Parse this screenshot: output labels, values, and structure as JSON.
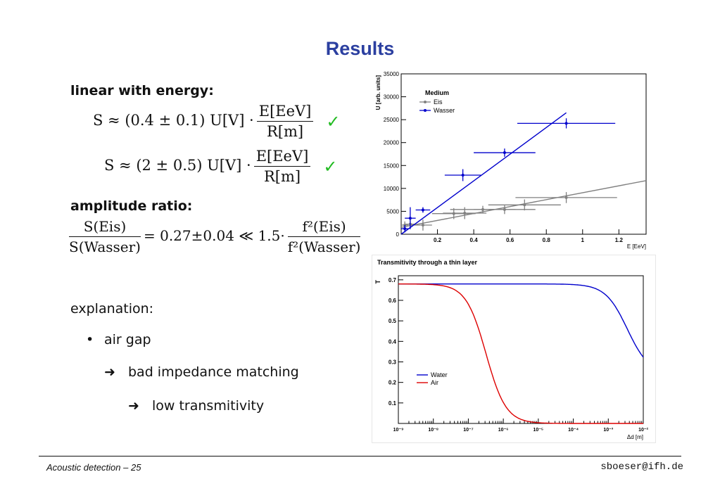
{
  "title": "Results",
  "section1": {
    "heading": "linear with energy:",
    "eq1": {
      "lhs": "S ≈ (0.4 ± 0.1) U[V] ·",
      "num": "E[EeV]",
      "den": "R[m]"
    },
    "eq2": {
      "lhs": "S ≈ (2 ± 0.5) U[V] ·",
      "num": "E[EeV]",
      "den": "R[m]"
    },
    "check": "✓"
  },
  "section2": {
    "heading": "amplitude ratio:",
    "lhs_num": "S(Eis)",
    "lhs_den": "S(Wasser)",
    "middle": "= 0.27±0.04 ≪ 1.5·",
    "rhs_num": "f²(Eis)",
    "rhs_den": "f²(Wasser)"
  },
  "section3": {
    "heading": "explanation:",
    "bullet": "•",
    "item1": "air gap",
    "arrow": "➜",
    "item2": "bad impedance matching",
    "item3": "low transmitivity"
  },
  "footer": {
    "left": "Acoustic detection – 25",
    "right": "sboeser@ifh.de"
  },
  "colors": {
    "title": "#2b3fa0",
    "check": "#22bb22",
    "blue": "#0000cc",
    "gray": "#808080",
    "red": "#dd0000"
  },
  "chart_data": [
    {
      "type": "scatter",
      "title": "",
      "xlabel": "E [EeV]",
      "ylabel": "U [arb. units]",
      "xlim": [
        0,
        1.35
      ],
      "ylim": [
        0,
        35000
      ],
      "x_ticks": [
        0.2,
        0.4,
        0.6,
        0.8,
        1,
        1.2
      ],
      "x_tick_labels": [
        "0.2",
        "0.4",
        "0.6",
        "0.8",
        "1",
        "1.2"
      ],
      "y_ticks": [
        0,
        5000,
        10000,
        15000,
        20000,
        25000,
        30000,
        35000
      ],
      "y_tick_labels": [
        "0",
        "5000",
        "10000",
        "15000",
        "20000",
        "25000",
        "30000",
        "35000"
      ],
      "legend": {
        "title": "Medium",
        "placement": "top-left"
      },
      "series": [
        {
          "name": "Eis",
          "color": "#808080",
          "points": [
            {
              "x": 0.02,
              "y": 2000,
              "xerr": 0.02,
              "yerr": 800
            },
            {
              "x": 0.05,
              "y": 2200,
              "xerr": 0.03,
              "yerr": 900
            },
            {
              "x": 0.12,
              "y": 2000,
              "xerr": 0.05,
              "yerr": 1200
            },
            {
              "x": 0.29,
              "y": 4500,
              "xerr": 0.12,
              "yerr": 1200
            },
            {
              "x": 0.35,
              "y": 4600,
              "xerr": 0.12,
              "yerr": 1300
            },
            {
              "x": 0.45,
              "y": 5400,
              "xerr": 0.18,
              "yerr": 800
            },
            {
              "x": 0.57,
              "y": 5400,
              "xerr": 0.17,
              "yerr": 1000
            },
            {
              "x": 0.68,
              "y": 6400,
              "xerr": 0.2,
              "yerr": 1200
            },
            {
              "x": 0.91,
              "y": 8000,
              "xerr": 0.28,
              "yerr": 1200
            }
          ],
          "fit": {
            "x": [
              0,
              1.35
            ],
            "y": [
              1500,
              11700
            ]
          }
        },
        {
          "name": "Wasser",
          "color": "#0000cc",
          "points": [
            {
              "x": 0.02,
              "y": 1200,
              "xerr": 0.02,
              "yerr": 800
            },
            {
              "x": 0.05,
              "y": 3500,
              "xerr": 0.03,
              "yerr": 2400
            },
            {
              "x": 0.12,
              "y": 5300,
              "xerr": 0.04,
              "yerr": 600
            },
            {
              "x": 0.34,
              "y": 12900,
              "xerr": 0.1,
              "yerr": 1300
            },
            {
              "x": 0.57,
              "y": 17800,
              "xerr": 0.17,
              "yerr": 900
            },
            {
              "x": 0.91,
              "y": 24200,
              "xerr": 0.27,
              "yerr": 1100
            }
          ],
          "fit": {
            "x": [
              0,
              0.91
            ],
            "y": [
              0,
              26500
            ]
          }
        }
      ]
    },
    {
      "type": "line",
      "title": "Transmitivity through a thin layer",
      "xlabel": "Δd [m]",
      "ylabel": "T",
      "x_scale": "log",
      "xlim": [
        1e-09,
        0.01
      ],
      "ylim": [
        0,
        0.72
      ],
      "x_ticks": [
        1e-09,
        1e-08,
        1e-07,
        1e-06,
        1e-05,
        0.0001,
        0.001,
        0.01
      ],
      "x_tick_labels": [
        "10⁻⁹",
        "10⁻⁸",
        "10⁻⁷",
        "10⁻⁶",
        "10⁻⁵",
        "10⁻⁴",
        "10⁻³",
        "10⁻²"
      ],
      "y_ticks": [
        0.1,
        0.2,
        0.3,
        0.4,
        0.5,
        0.6,
        0.7
      ],
      "y_tick_labels": [
        "0.1",
        "0.2",
        "0.3",
        "0.4",
        "0.5",
        "0.6",
        "0.7"
      ],
      "legend": {
        "placement": "bottom-left"
      },
      "series": [
        {
          "name": "Water",
          "color": "#0000cc",
          "max": 0.68,
          "min": 0.24,
          "midpoint": 0.0035,
          "steepness": 3.2
        },
        {
          "name": "Air",
          "color": "#dd0000",
          "max": 0.68,
          "min": 0.0,
          "midpoint": 3.2e-07,
          "steepness": 3.5
        }
      ]
    }
  ]
}
